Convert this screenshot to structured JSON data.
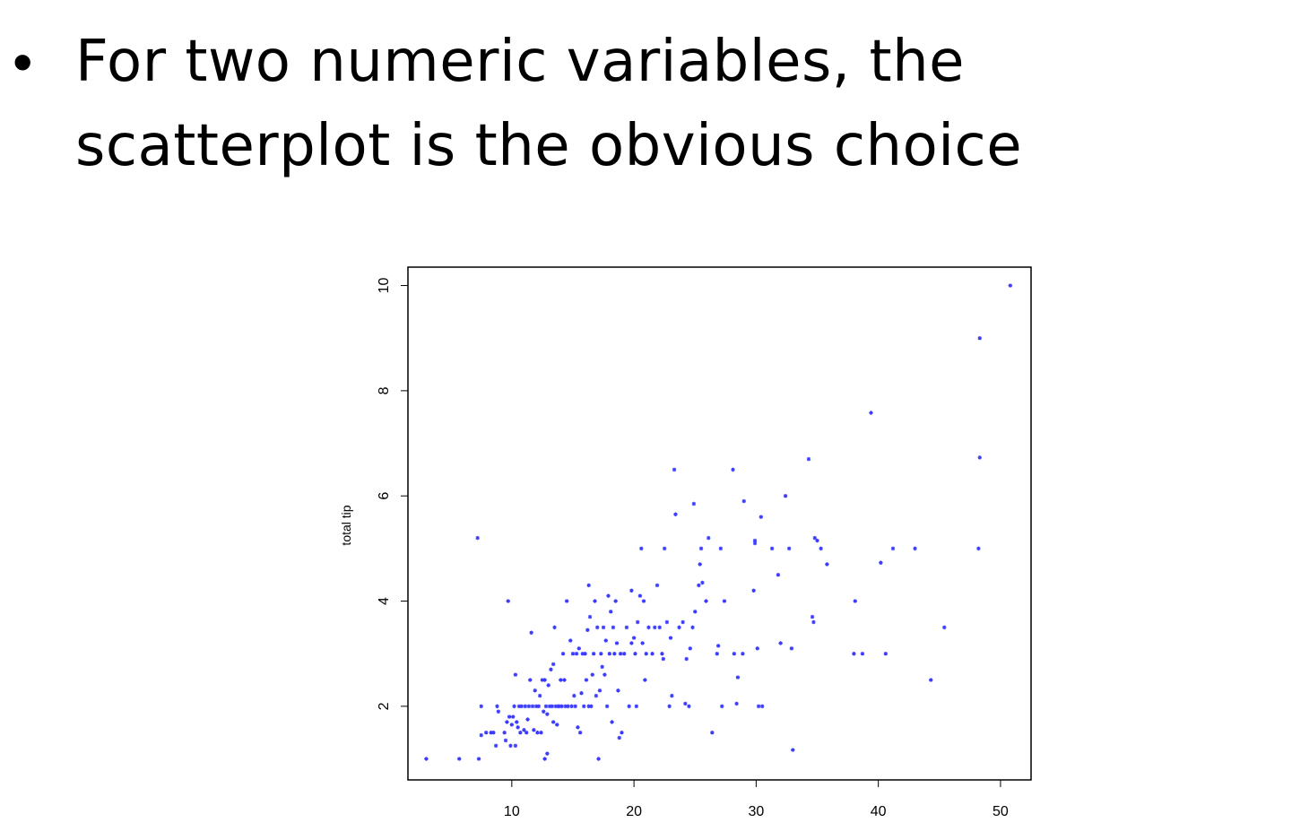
{
  "slide": {
    "bullet_symbol": "•",
    "bullet_text": "For two numeric variables, the scatterplot is the obvious choice"
  },
  "chart_data": {
    "type": "scatter",
    "xlabel": "",
    "ylabel": "total tip",
    "xlim": [
      1.5,
      52.5
    ],
    "ylim": [
      0.6,
      10.35
    ],
    "x_ticks": [
      10,
      20,
      30,
      40,
      50
    ],
    "y_ticks": [
      2,
      4,
      6,
      8,
      10
    ],
    "grid": false,
    "point_color": "#3b3bff",
    "points": [
      [
        3,
        1
      ],
      [
        5.7,
        1
      ],
      [
        7.3,
        1
      ],
      [
        7.2,
        5.2
      ],
      [
        7.5,
        2
      ],
      [
        7.5,
        1.45
      ],
      [
        7.9,
        1.5
      ],
      [
        8.3,
        1.5
      ],
      [
        8.5,
        1.5
      ],
      [
        8.7,
        1.25
      ],
      [
        8.8,
        2
      ],
      [
        8.9,
        1.9
      ],
      [
        9.4,
        1.5
      ],
      [
        9.5,
        1.35
      ],
      [
        9.6,
        1.7
      ],
      [
        9.7,
        4
      ],
      [
        9.8,
        1.8
      ],
      [
        9.9,
        1.25
      ],
      [
        10,
        1.65
      ],
      [
        10.1,
        1.8
      ],
      [
        10.2,
        2
      ],
      [
        10.3,
        2.6
      ],
      [
        10.3,
        1.25
      ],
      [
        10.4,
        1.7
      ],
      [
        10.5,
        1.6
      ],
      [
        10.6,
        2
      ],
      [
        10.7,
        1.5
      ],
      [
        10.8,
        2
      ],
      [
        11,
        1.55
      ],
      [
        11.1,
        2
      ],
      [
        11.2,
        1.5
      ],
      [
        11.3,
        1.75
      ],
      [
        11.4,
        2
      ],
      [
        11.5,
        2.5
      ],
      [
        11.6,
        3.4
      ],
      [
        11.7,
        2
      ],
      [
        11.8,
        1.55
      ],
      [
        11.9,
        2.3
      ],
      [
        12,
        2
      ],
      [
        12.1,
        1.5
      ],
      [
        12.2,
        2
      ],
      [
        12.3,
        2.2
      ],
      [
        12.4,
        1.5
      ],
      [
        12.5,
        2.5
      ],
      [
        12.6,
        1.9
      ],
      [
        12.7,
        2.5
      ],
      [
        12.8,
        2
      ],
      [
        12.9,
        1.85
      ],
      [
        12.9,
        1.1
      ],
      [
        12.7,
        1
      ],
      [
        13,
        2.4
      ],
      [
        13.1,
        2
      ],
      [
        13.2,
        2.7
      ],
      [
        13.3,
        2
      ],
      [
        13.4,
        1.7
      ],
      [
        13.4,
        2.8
      ],
      [
        13.5,
        3.5
      ],
      [
        13.6,
        2
      ],
      [
        13.7,
        1.65
      ],
      [
        13.8,
        2
      ],
      [
        13.9,
        2
      ],
      [
        14,
        2.5
      ],
      [
        14.1,
        2
      ],
      [
        14.2,
        3
      ],
      [
        14.3,
        2.5
      ],
      [
        14.4,
        2
      ],
      [
        14.5,
        4
      ],
      [
        14.6,
        2
      ],
      [
        14.8,
        3.25
      ],
      [
        14.9,
        2
      ],
      [
        15,
        3
      ],
      [
        15.1,
        2.2
      ],
      [
        15.2,
        2
      ],
      [
        15.3,
        3
      ],
      [
        15.4,
        1.6
      ],
      [
        15.5,
        3.1
      ],
      [
        15.6,
        1.5
      ],
      [
        15.7,
        2.25
      ],
      [
        15.8,
        3
      ],
      [
        15.9,
        2
      ],
      [
        16,
        3
      ],
      [
        16.1,
        2.5
      ],
      [
        16.2,
        3.45
      ],
      [
        16.3,
        2
      ],
      [
        16.3,
        4.3
      ],
      [
        16.4,
        3.7
      ],
      [
        16.5,
        2
      ],
      [
        16.6,
        2.6
      ],
      [
        16.7,
        3
      ],
      [
        16.8,
        4
      ],
      [
        16.9,
        2.2
      ],
      [
        17,
        3.5
      ],
      [
        17.1,
        1
      ],
      [
        17.2,
        2.3
      ],
      [
        17.3,
        3
      ],
      [
        17.4,
        2.75
      ],
      [
        17.5,
        3.5
      ],
      [
        17.6,
        2.6
      ],
      [
        17.7,
        3.25
      ],
      [
        17.8,
        2
      ],
      [
        17.9,
        4.1
      ],
      [
        18,
        3
      ],
      [
        18.1,
        3.8
      ],
      [
        18.2,
        1.7
      ],
      [
        18.3,
        3.5
      ],
      [
        18.4,
        3
      ],
      [
        18.5,
        4
      ],
      [
        18.6,
        3.2
      ],
      [
        18.7,
        2.3
      ],
      [
        18.8,
        1.4
      ],
      [
        18.9,
        3
      ],
      [
        19,
        1.5
      ],
      [
        19.2,
        3
      ],
      [
        19.4,
        3.5
      ],
      [
        19.6,
        2
      ],
      [
        19.8,
        3.2
      ],
      [
        19.8,
        4.2
      ],
      [
        20,
        3.3
      ],
      [
        20.1,
        3
      ],
      [
        20.2,
        2
      ],
      [
        20.3,
        3.6
      ],
      [
        20.5,
        4.1
      ],
      [
        20.6,
        5
      ],
      [
        20.7,
        3.2
      ],
      [
        20.8,
        4
      ],
      [
        20.9,
        2.5
      ],
      [
        21,
        3
      ],
      [
        21.2,
        3.5
      ],
      [
        21.5,
        3
      ],
      [
        21.7,
        3.5
      ],
      [
        21.9,
        4.3
      ],
      [
        22.1,
        3.5
      ],
      [
        22.3,
        3
      ],
      [
        22.4,
        2.9
      ],
      [
        22.5,
        5
      ],
      [
        22.7,
        3.6
      ],
      [
        22.9,
        2
      ],
      [
        23,
        3.3
      ],
      [
        23.1,
        2.2
      ],
      [
        23.3,
        6.5
      ],
      [
        23.4,
        5.65
      ],
      [
        23.7,
        3.5
      ],
      [
        24,
        3.6
      ],
      [
        24.2,
        2.05
      ],
      [
        24.3,
        2.9
      ],
      [
        24.5,
        2
      ],
      [
        24.6,
        3.1
      ],
      [
        24.8,
        3.5
      ],
      [
        24.9,
        5.85
      ],
      [
        25,
        3.8
      ],
      [
        25.3,
        4.3
      ],
      [
        25.4,
        4.7
      ],
      [
        25.5,
        5
      ],
      [
        25.6,
        4.35
      ],
      [
        25.9,
        4
      ],
      [
        26.1,
        5.2
      ],
      [
        26.4,
        1.5
      ],
      [
        26.8,
        3
      ],
      [
        26.9,
        3.15
      ],
      [
        27.1,
        5
      ],
      [
        27.2,
        2
      ],
      [
        27.4,
        4
      ],
      [
        28.1,
        6.5
      ],
      [
        28.2,
        3
      ],
      [
        28.4,
        2.05
      ],
      [
        28.5,
        2.55
      ],
      [
        28.9,
        3
      ],
      [
        29,
        5.9
      ],
      [
        29.8,
        4.2
      ],
      [
        29.9,
        5.1
      ],
      [
        29.9,
        5.15
      ],
      [
        30.1,
        3.1
      ],
      [
        30.2,
        2
      ],
      [
        30.4,
        5.6
      ],
      [
        30.5,
        2
      ],
      [
        31.3,
        5
      ],
      [
        31.8,
        4.5
      ],
      [
        32,
        3.2
      ],
      [
        32.4,
        6
      ],
      [
        32.7,
        5
      ],
      [
        32.9,
        3.1
      ],
      [
        33,
        1.17
      ],
      [
        34.3,
        6.7
      ],
      [
        34.6,
        3.7
      ],
      [
        34.7,
        3.6
      ],
      [
        34.8,
        5.2
      ],
      [
        35,
        5.15
      ],
      [
        35.3,
        5
      ],
      [
        35.8,
        4.7
      ],
      [
        38,
        3
      ],
      [
        38.1,
        4
      ],
      [
        38.7,
        3
      ],
      [
        39.4,
        7.58
      ],
      [
        40.2,
        4.73
      ],
      [
        40.6,
        3
      ],
      [
        41.2,
        5
      ],
      [
        43,
        5
      ],
      [
        44.3,
        2.5
      ],
      [
        45.4,
        3.5
      ],
      [
        48.2,
        5
      ],
      [
        48.3,
        6.73
      ],
      [
        48.3,
        9
      ],
      [
        50.8,
        10
      ]
    ]
  }
}
